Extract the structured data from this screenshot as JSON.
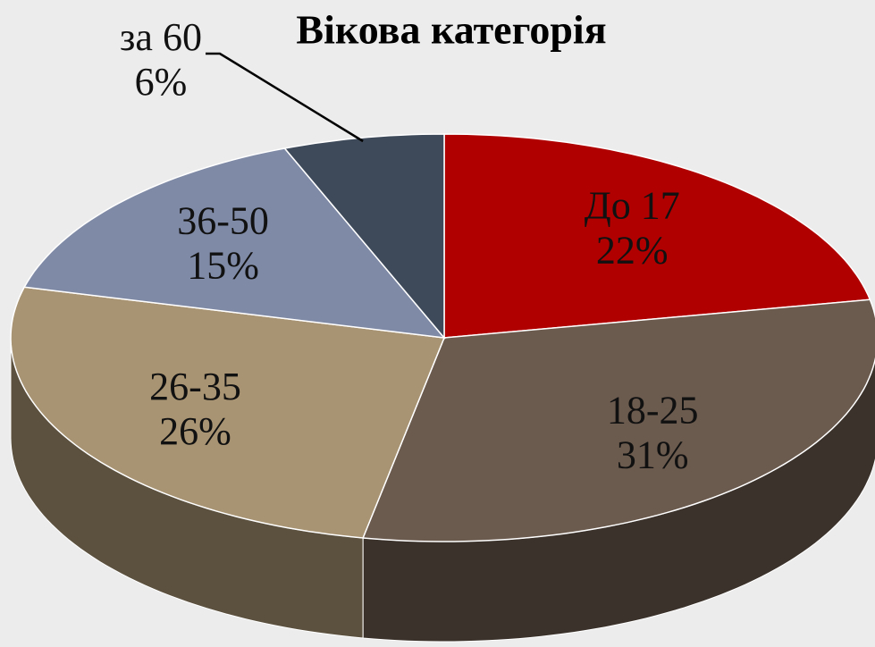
{
  "chart_data": {
    "type": "pie",
    "title": "Вікова категорія",
    "categories": [
      "До 17",
      "18-25",
      "26-35",
      "36-50",
      "за 60"
    ],
    "values": [
      22,
      31,
      26,
      15,
      6
    ],
    "value_labels": [
      "22%",
      "31%",
      "26%",
      "15%",
      "6%"
    ],
    "colors": [
      "#b00000",
      "#6b5a4e",
      "#a89372",
      "#7f8aa6",
      "#3e4a5a"
    ]
  }
}
